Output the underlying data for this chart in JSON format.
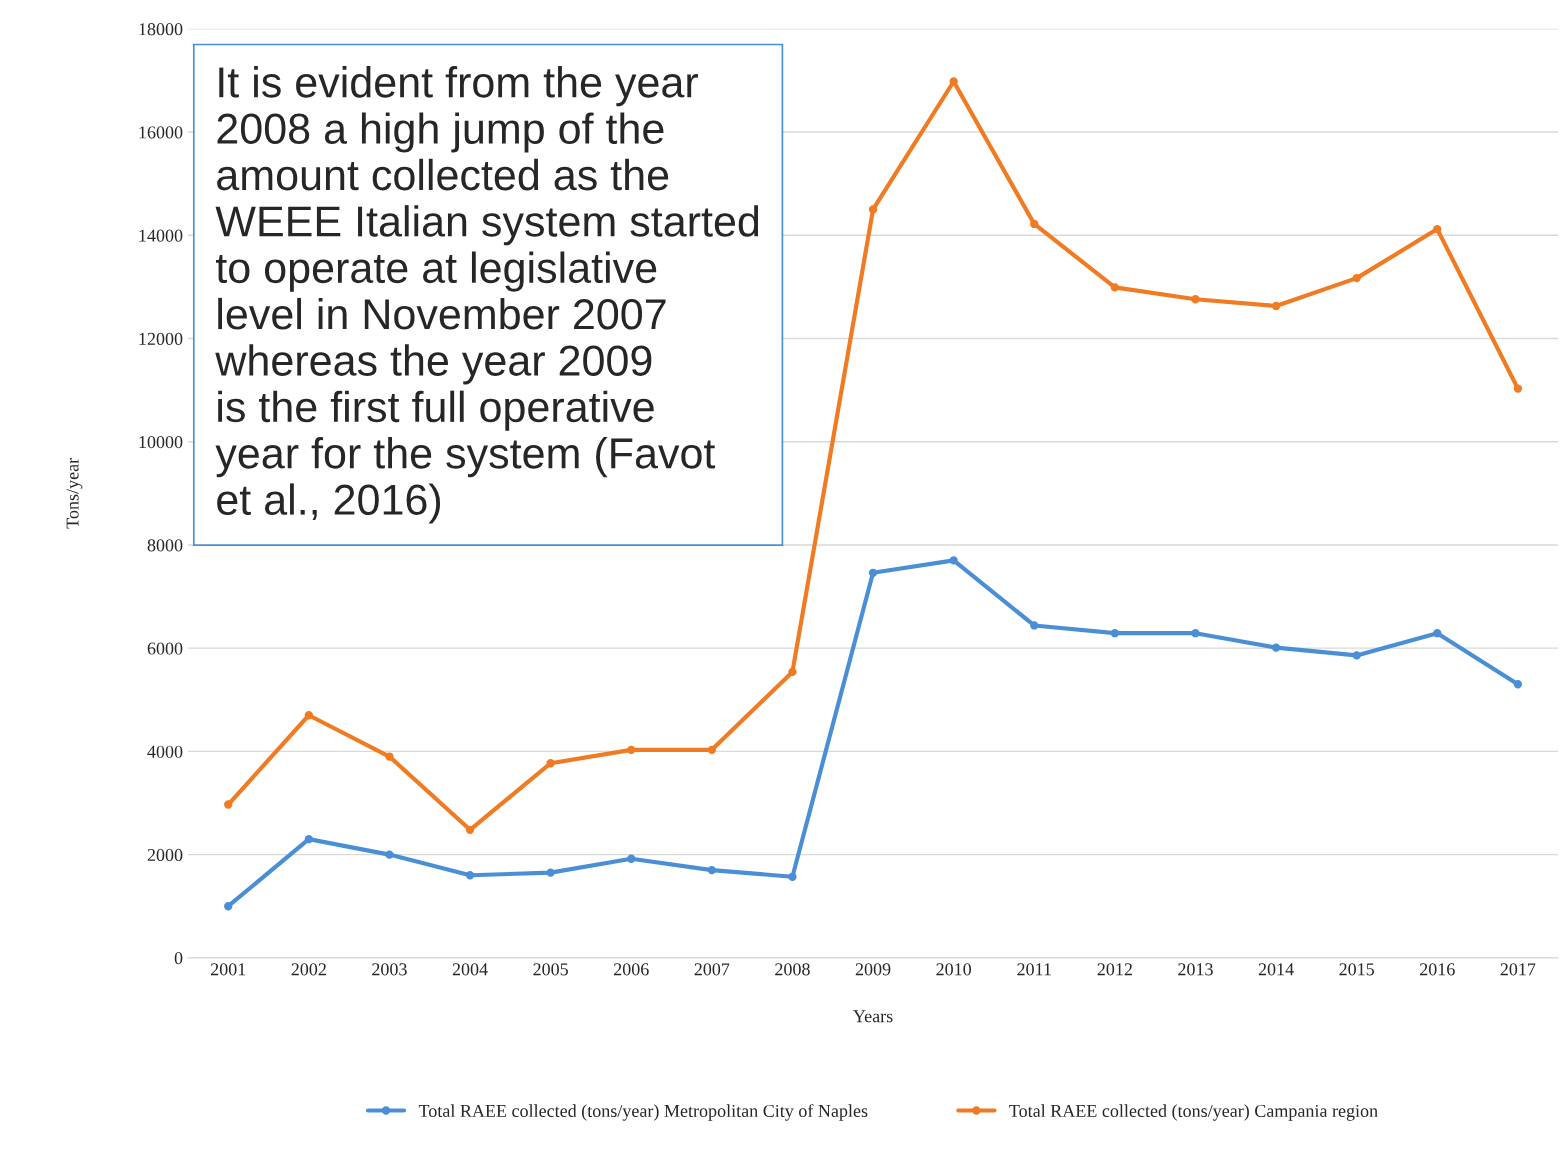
{
  "chart_data": {
    "type": "line",
    "xlabel": "Years",
    "ylabel": "Tons/year",
    "categories": [
      "2001",
      "2002",
      "2003",
      "2004",
      "2005",
      "2006",
      "2007",
      "2008",
      "2009",
      "2010",
      "2011",
      "2012",
      "2013",
      "2014",
      "2015",
      "2016",
      "2017"
    ],
    "series": [
      {
        "name": "Total RAEE collected (tons/year) Metropolitan City of Naples",
        "color": "#4a8fd6",
        "values": [
          1000,
          2300,
          2000,
          1600,
          1650,
          1920,
          1700,
          1570,
          7460,
          7700,
          6440,
          6290,
          6290,
          6010,
          5860,
          6290,
          5300
        ]
      },
      {
        "name": "Total RAEE collected (tons/year) Campania region",
        "color": "#f07b22",
        "values": [
          2970,
          4700,
          3900,
          2480,
          3770,
          4030,
          4030,
          5540,
          14500,
          16980,
          14220,
          12990,
          12760,
          12630,
          13170,
          14120,
          11030
        ]
      }
    ],
    "ylim": [
      0,
      18000
    ],
    "yticks": [
      0,
      2000,
      4000,
      6000,
      8000,
      10000,
      12000,
      14000,
      16000,
      18000
    ],
    "grid": "y",
    "legend": "bottom",
    "marker": "circle",
    "line_style": "solid",
    "annotations": [
      "It is evident from the year\n2008 a high jump of the\namount collected as the\nWEEE Italian system started\nto operate at legislative\nlevel in November 2007\nwhereas the year 2009\nis the first full operative\nyear for the system (Favot\net al., 2016)"
    ]
  }
}
